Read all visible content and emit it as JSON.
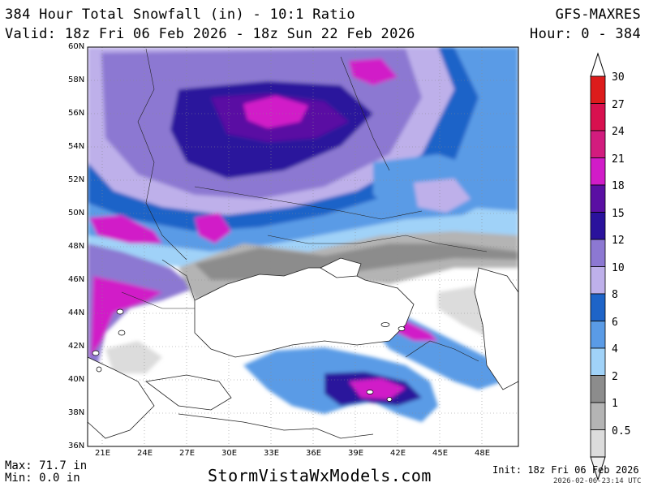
{
  "header": {
    "title": "384 Hour Total Snowfall (in) - 10:1 Ratio",
    "model": "GFS-MAXRES",
    "valid": "Valid: 18z Fri 06 Feb 2026 - 18z Sun 22 Feb 2026",
    "hour": "Hour: 0 - 384"
  },
  "map": {
    "lat_labels": [
      "60N",
      "58N",
      "56N",
      "54N",
      "52N",
      "50N",
      "48N",
      "46N",
      "44N",
      "42N",
      "40N",
      "38N",
      "36N"
    ],
    "lon_labels": [
      "21E",
      "24E",
      "27E",
      "30E",
      "33E",
      "36E",
      "39E",
      "42E",
      "45E",
      "48E"
    ],
    "lat_range": [
      36,
      60
    ],
    "lon_range": [
      19.5,
      50.5
    ],
    "grid": true
  },
  "legend": {
    "levels": [
      {
        "label": "30",
        "color": "#dd1c1c"
      },
      {
        "label": "27",
        "color": "#d8114f"
      },
      {
        "label": "24",
        "color": "#d21c7e"
      },
      {
        "label": "21",
        "color": "#d11cc8"
      },
      {
        "label": "18",
        "color": "#5a0fa3"
      },
      {
        "label": "15",
        "color": "#2a129c"
      },
      {
        "label": "12",
        "color": "#8c78d2"
      },
      {
        "label": "10",
        "color": "#beb0ea"
      },
      {
        "label": "8",
        "color": "#1e64c8"
      },
      {
        "label": "6",
        "color": "#5a9be6"
      },
      {
        "label": "4",
        "color": "#a0d2f8"
      },
      {
        "label": "2",
        "color": "#8c8c8c"
      },
      {
        "label": "1",
        "color": "#b4b4b4"
      },
      {
        "label": "0.5",
        "color": "#dcdcdc"
      }
    ],
    "bottom_color": "#f0f0f0"
  },
  "footer": {
    "max": "Max: 71.7 in",
    "min": "Min: 0.0 in",
    "site": "StormVistaWxModels.com",
    "init": "Init: 18z Fri 06 Feb 2026",
    "stamp": "2026-02-06-23:14 UTC"
  }
}
